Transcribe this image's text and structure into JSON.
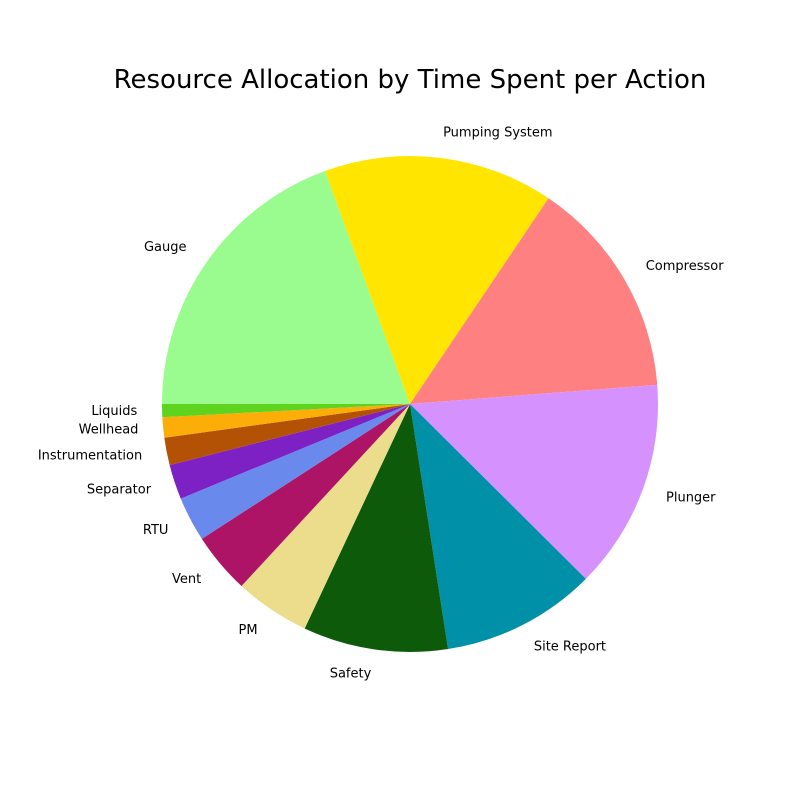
{
  "chart_data": {
    "type": "pie",
    "title": "Resource Allocation by Time Spent per Action",
    "start_angle_deg": 180,
    "direction": "clockwise",
    "slices": [
      {
        "label": "Gauge",
        "value": 20.6,
        "color": "#9afc8e"
      },
      {
        "label": "Pumping System",
        "value": 15.9,
        "color": "#ffe500"
      },
      {
        "label": "Compressor",
        "value": 15.2,
        "color": "#ff8080"
      },
      {
        "label": "Plunger",
        "value": 14.5,
        "color": "#d592fe"
      },
      {
        "label": "Site Report",
        "value": 10.7,
        "color": "#0090a8"
      },
      {
        "label": "Safety",
        "value": 10.0,
        "color": "#0e5a0b"
      },
      {
        "label": "PM",
        "value": 5.2,
        "color": "#ecdd8d"
      },
      {
        "label": "Vent",
        "value": 4.2,
        "color": "#ad1465"
      },
      {
        "label": "RTU",
        "value": 3.1,
        "color": "#6a89ec"
      },
      {
        "label": "Separator",
        "value": 2.4,
        "color": "#7d20c4"
      },
      {
        "label": "Instrumentation",
        "value": 1.9,
        "color": "#b35204"
      },
      {
        "label": "Wellhead",
        "value": 1.4,
        "color": "#fdad08"
      },
      {
        "label": "Liquids",
        "value": 0.9,
        "color": "#5fd41e"
      }
    ]
  }
}
